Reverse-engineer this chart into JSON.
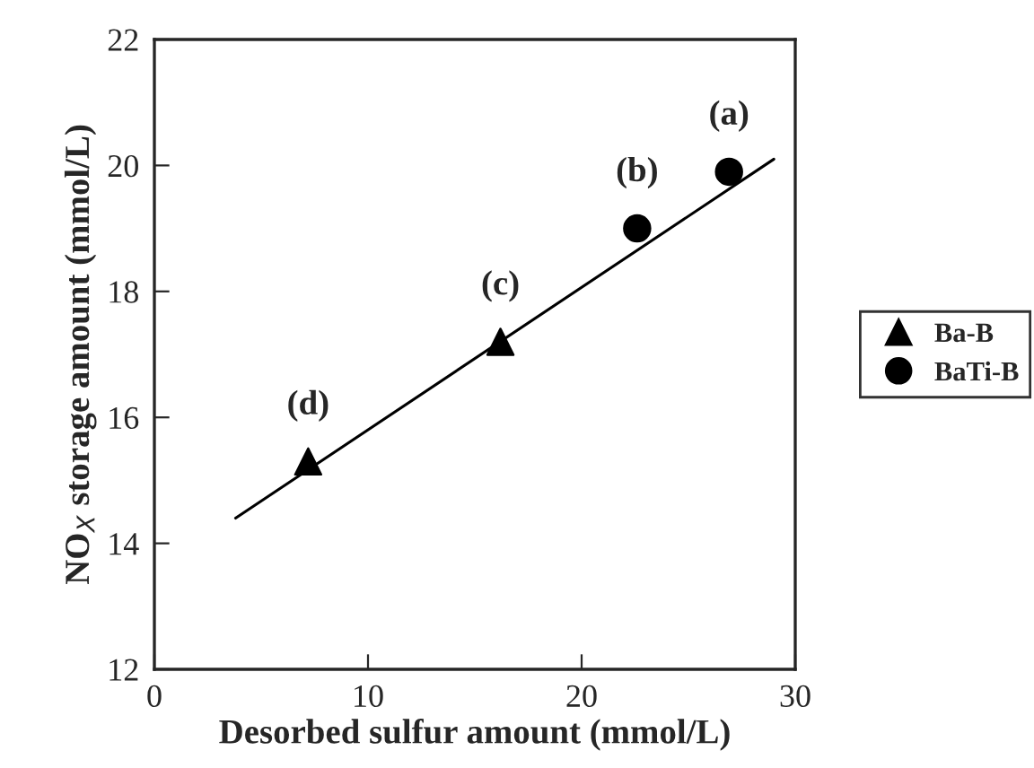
{
  "chart_data": {
    "type": "scatter",
    "xlabel": "Desorbed sulfur amount (mmol/L)",
    "ylabel": "NO$_{X}$ storage amount (mmol/L)",
    "xlim": [
      0,
      30
    ],
    "ylim": [
      12,
      22
    ],
    "xticks": [
      0,
      10,
      20,
      30
    ],
    "yticks": [
      12,
      14,
      16,
      18,
      20,
      22
    ],
    "grid": false,
    "legend": "right",
    "series": [
      {
        "name": "Ba-B",
        "marker": "triangle",
        "color": "#000000",
        "x": [
          7.2,
          16.2
        ],
        "values": [
          15.3,
          17.2
        ]
      },
      {
        "name": "BaTi-B",
        "marker": "circle",
        "color": "#000000",
        "x": [
          22.6,
          26.9
        ],
        "values": [
          19.0,
          19.9
        ]
      },
      {
        "type": "line",
        "marker": "none",
        "color": "#000000",
        "x": [
          3.8,
          29.0
        ],
        "values": [
          14.4,
          20.1
        ]
      }
    ],
    "annotations": [
      {
        "text": "(a)",
        "x": 26.9,
        "y": 19.9
      },
      {
        "text": "(b)",
        "x": 22.6,
        "y": 19.0
      },
      {
        "text": "(c)",
        "x": 16.2,
        "y": 17.2
      },
      {
        "text": "(d)",
        "x": 7.2,
        "y": 15.3
      }
    ]
  }
}
